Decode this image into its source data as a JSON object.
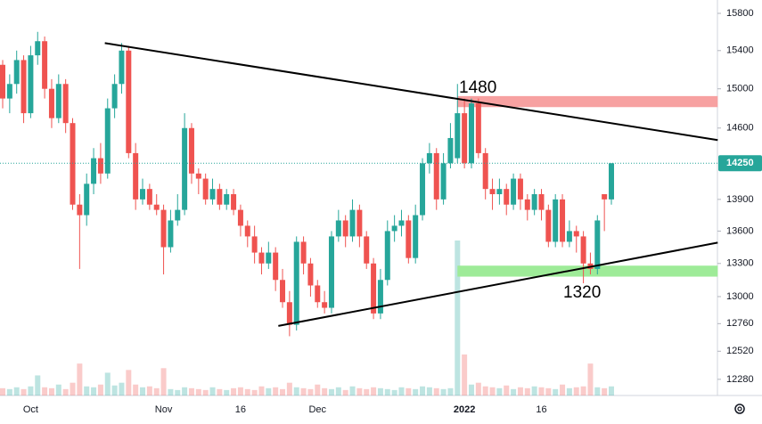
{
  "chart_data": {
    "type": "candlestick",
    "log_scale": true,
    "grid": false,
    "ylim": [
      12144,
      15946
    ],
    "yticks": [
      12280,
      12520,
      12760,
      13000,
      13300,
      13600,
      13900,
      14600,
      15000,
      15400,
      15800
    ],
    "up_color": "#26a69a",
    "down_color": "#ef5350",
    "categories": [
      null,
      null,
      null,
      null,
      "Oct",
      null,
      null,
      null,
      null,
      null,
      null,
      null,
      null,
      null,
      null,
      null,
      null,
      null,
      null,
      null,
      null,
      null,
      null,
      "Nov",
      null,
      null,
      null,
      null,
      null,
      null,
      null,
      null,
      null,
      null,
      "16",
      null,
      null,
      null,
      null,
      null,
      null,
      null,
      null,
      null,
      null,
      "Dec",
      null,
      null,
      null,
      null,
      null,
      null,
      null,
      null,
      null,
      null,
      null,
      null,
      null,
      null,
      null,
      null,
      null,
      null,
      null,
      null,
      "2022",
      null,
      null,
      null,
      null,
      null,
      null,
      null,
      null,
      null,
      null,
      "16",
      null,
      null,
      null,
      null,
      null,
      null,
      null,
      null,
      null,
      null
    ],
    "open": [
      15250,
      14900,
      15050,
      15300,
      14750,
      15350,
      15500,
      15000,
      14700,
      15050,
      14650,
      13850,
      13750,
      14050,
      14300,
      14150,
      14800,
      15050,
      15400,
      14350,
      13900,
      14000,
      13850,
      13800,
      13450,
      13700,
      13800,
      14600,
      14150,
      14100,
      13900,
      14000,
      13850,
      13950,
      13800,
      13650,
      13550,
      13400,
      13300,
      13400,
      13150,
      12950,
      12750,
      13500,
      13300,
      13100,
      12950,
      12900,
      13550,
      13700,
      13550,
      13800,
      13550,
      13300,
      12850,
      13150,
      13600,
      13650,
      13700,
      13350,
      13750,
      14250,
      14350,
      13900,
      14250,
      14300,
      14750,
      14250,
      14850,
      14350,
      14000,
      13950,
      14000,
      13850,
      14100,
      13900,
      13800,
      13950,
      13800,
      13500,
      13900,
      13500,
      13600,
      13550,
      13300,
      13250,
      13950,
      13900
    ],
    "high": [
      15300,
      15150,
      15400,
      15350,
      15450,
      15600,
      15550,
      15100,
      15150,
      15100,
      14700,
      13950,
      14150,
      14400,
      14450,
      14900,
      15150,
      15480,
      15450,
      14450,
      14100,
      14050,
      13950,
      13850,
      13800,
      13950,
      14750,
      14650,
      14200,
      14150,
      14100,
      14050,
      14000,
      14000,
      13850,
      13700,
      13650,
      13450,
      13500,
      13450,
      13250,
      13050,
      13550,
      13550,
      13350,
      13150,
      13050,
      13600,
      13800,
      13750,
      13900,
      13850,
      13600,
      13350,
      13250,
      13700,
      13750,
      13800,
      13750,
      13850,
      14300,
      14450,
      14400,
      14350,
      14650,
      15050,
      14900,
      14900,
      14900,
      14400,
      14100,
      14100,
      14050,
      14150,
      14150,
      13950,
      14000,
      14000,
      13850,
      13950,
      13950,
      13700,
      13650,
      13600,
      13400,
      13750,
      13950,
      14250
    ],
    "low": [
      14800,
      14750,
      14950,
      14650,
      14700,
      15250,
      14900,
      14600,
      14650,
      14550,
      13800,
      13250,
      13650,
      13950,
      14050,
      14100,
      14700,
      14950,
      14300,
      13800,
      13850,
      13800,
      13750,
      13200,
      13400,
      13650,
      13750,
      14050,
      13950,
      13850,
      13850,
      13800,
      13800,
      13750,
      13550,
      13450,
      13300,
      13200,
      13250,
      13050,
      12900,
      12650,
      12700,
      13200,
      13000,
      12900,
      12850,
      12850,
      13500,
      13450,
      13500,
      13450,
      13250,
      12800,
      12800,
      13100,
      13500,
      13550,
      13300,
      13300,
      13700,
      14150,
      13800,
      13850,
      14200,
      14250,
      14200,
      14200,
      14300,
      13900,
      13800,
      13850,
      13750,
      13800,
      13800,
      13700,
      13750,
      13700,
      13450,
      13450,
      13450,
      13450,
      13400,
      13120,
      13200,
      13200,
      13600,
      13850
    ],
    "close": [
      14900,
      15050,
      15300,
      14750,
      15350,
      15500,
      15000,
      14700,
      15050,
      14650,
      13850,
      13750,
      14050,
      14300,
      14150,
      14800,
      15050,
      15400,
      14350,
      13900,
      14000,
      13850,
      13800,
      13450,
      13700,
      13800,
      14600,
      14150,
      14100,
      13900,
      14000,
      13850,
      13950,
      13800,
      13650,
      13550,
      13400,
      13300,
      13400,
      13150,
      12950,
      12750,
      13500,
      13300,
      13100,
      12950,
      12900,
      13550,
      13700,
      13550,
      13800,
      13550,
      13300,
      12850,
      13150,
      13600,
      13650,
      13700,
      13350,
      13750,
      14250,
      14350,
      13900,
      14250,
      14500,
      14750,
      14250,
      14850,
      14350,
      14000,
      13950,
      14000,
      13850,
      14100,
      13900,
      13800,
      13950,
      13800,
      13500,
      13900,
      13500,
      13600,
      13550,
      13300,
      13250,
      13700,
      13900,
      14250
    ],
    "volume": [
      8,
      7,
      9,
      7,
      10,
      22,
      9,
      8,
      12,
      7,
      14,
      35,
      10,
      9,
      12,
      25,
      11,
      14,
      28,
      12,
      9,
      10,
      8,
      30,
      7,
      6,
      9,
      8,
      7,
      6,
      9,
      7,
      6,
      8,
      9,
      7,
      6,
      10,
      8,
      9,
      7,
      14,
      9,
      8,
      7,
      12,
      8,
      7,
      9,
      6,
      10,
      8,
      7,
      9,
      8,
      7,
      6,
      9,
      8,
      7,
      10,
      9,
      8,
      7,
      8,
      170,
      45,
      12,
      14,
      10,
      9,
      8,
      11,
      7,
      9,
      8,
      10,
      9,
      8,
      7,
      12,
      8,
      9,
      10,
      35,
      9,
      8,
      10
    ],
    "last_price": 14250,
    "trendlines": [
      {
        "x": [
          14.6,
          102.2
        ],
        "y": [
          15480,
          14480
        ],
        "color": "#000000"
      },
      {
        "x": [
          39.4,
          102.2
        ],
        "y": [
          12740,
          13492
        ],
        "color": "#000000"
      }
    ],
    "zones": [
      {
        "x": [
          65,
          102.2
        ],
        "y": [
          14812,
          14925
        ],
        "color": "#f7a1a1"
      },
      {
        "x": [
          65,
          102.2
        ],
        "y": [
          13180,
          13280
        ],
        "color": "#9eeb98"
      }
    ],
    "annotations": [
      "1480",
      "1320"
    ]
  }
}
